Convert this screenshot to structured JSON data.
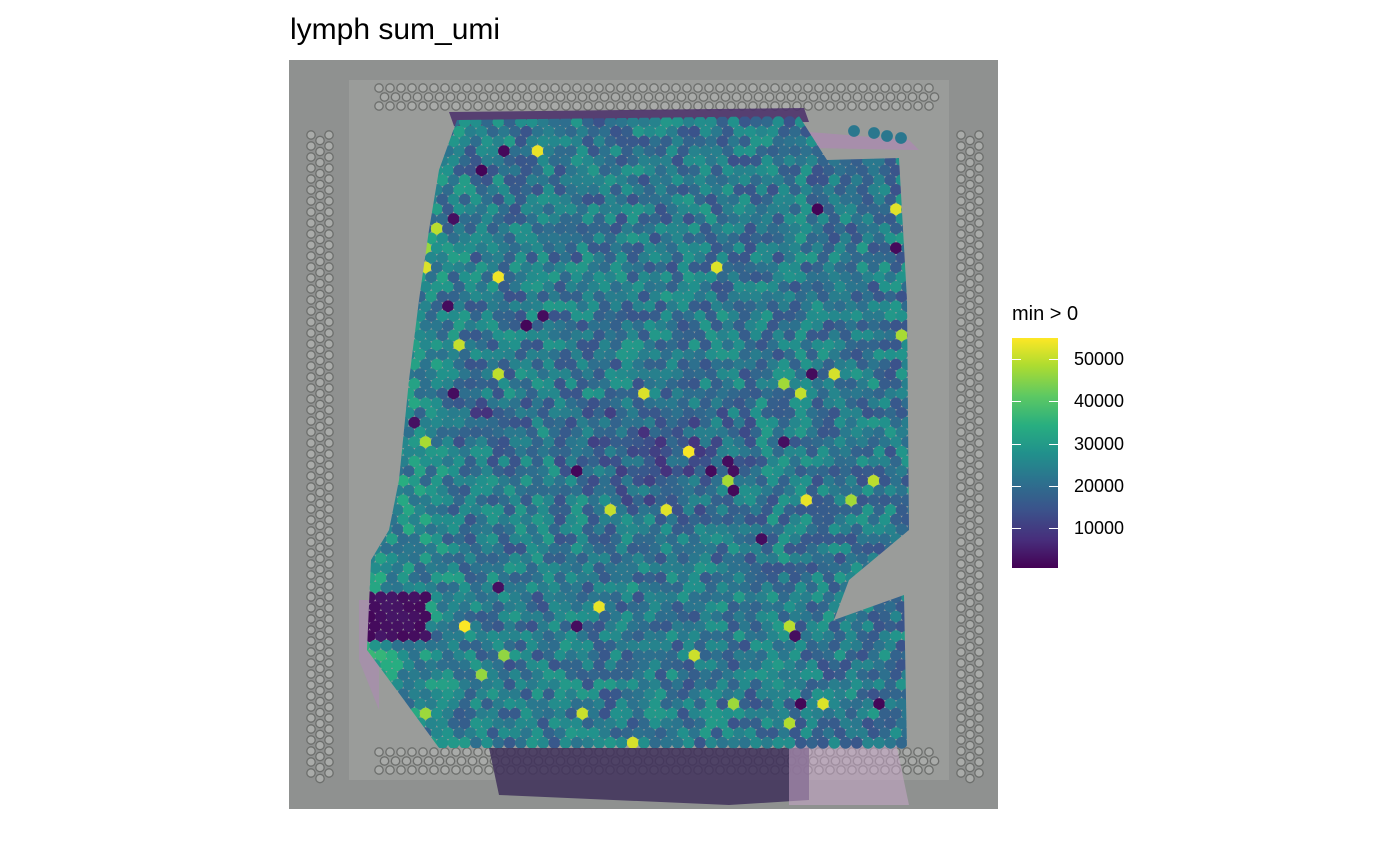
{
  "chart_data": {
    "type": "scatter",
    "title": "lymph sum_umi",
    "xlabel": "",
    "ylabel": "",
    "legend": {
      "title": "min > 0",
      "placement": "right",
      "colorscale": "viridis",
      "range": [
        500,
        55000
      ],
      "ticks": [
        10000,
        20000,
        30000,
        40000,
        50000
      ],
      "tick_labels": [
        "10000",
        "20000",
        "30000",
        "40000",
        "50000"
      ]
    },
    "typical_value": 22000,
    "background": "tissue histology image"
  },
  "colors": {
    "viridis": [
      "#440154",
      "#472d7b",
      "#3b528b",
      "#2c728e",
      "#21918c",
      "#28ae80",
      "#5ec962",
      "#addc30",
      "#fde725"
    ],
    "slide_background": "#8f9190",
    "tissue_stain": "#8a5aa0"
  }
}
